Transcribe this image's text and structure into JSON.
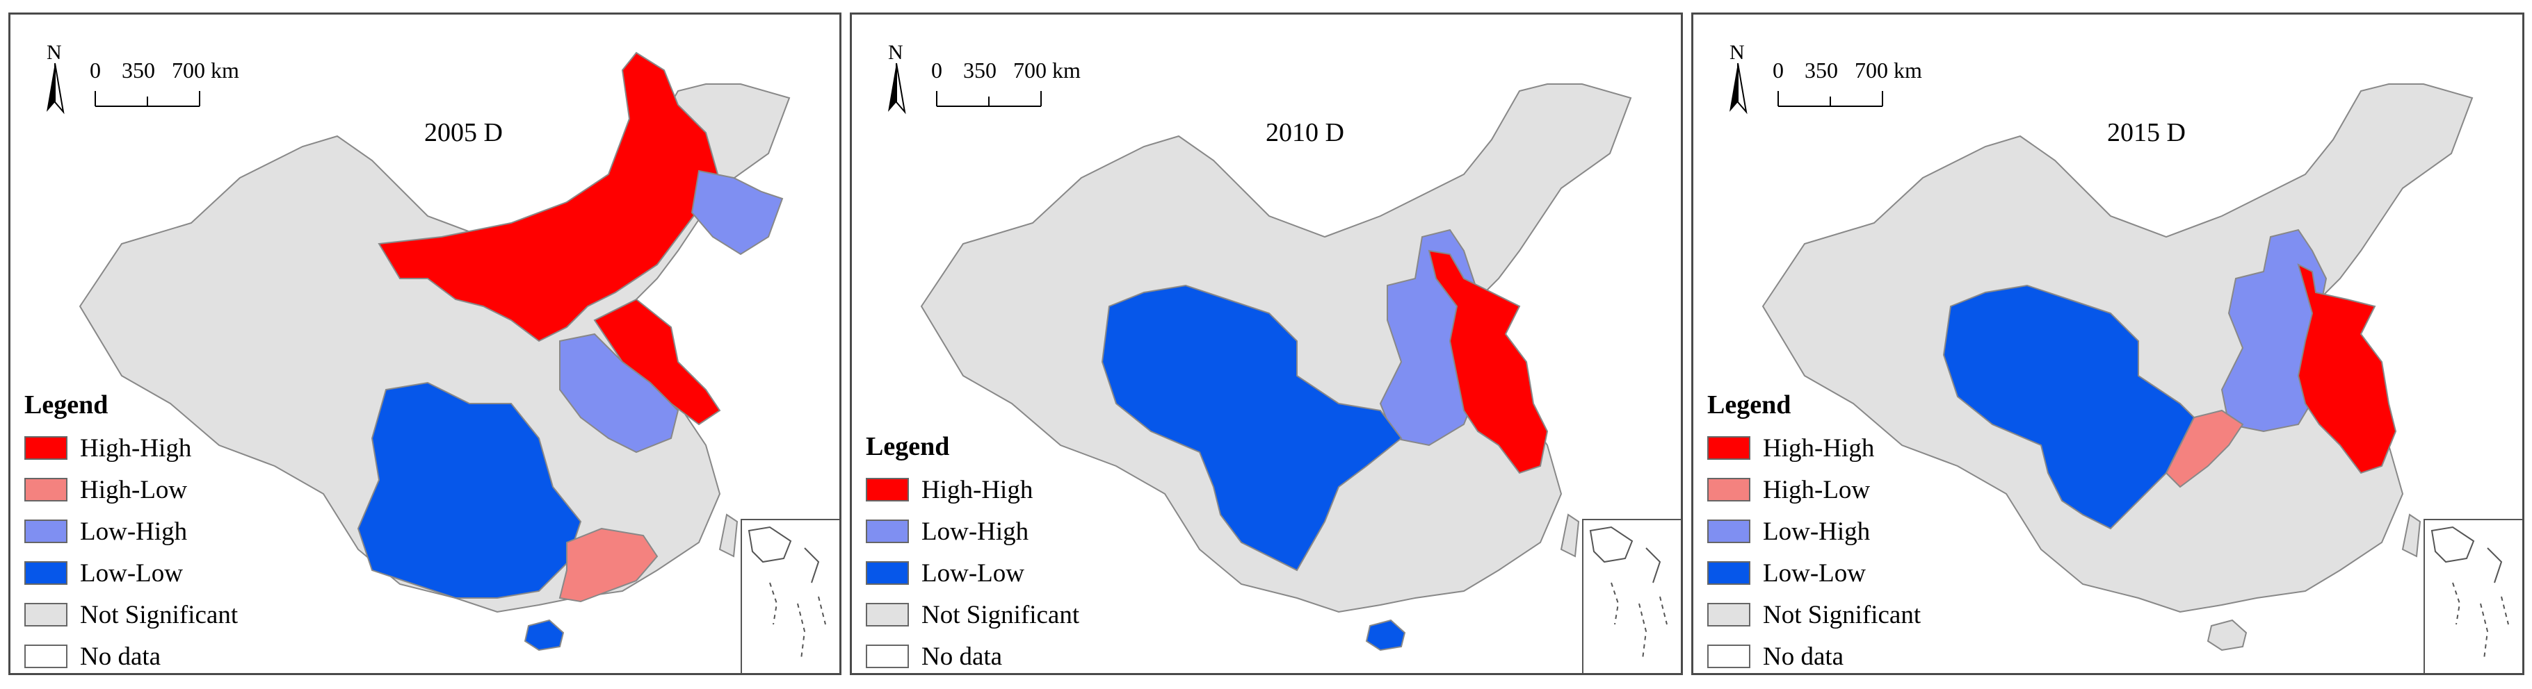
{
  "colors": {
    "high_high": "#ff0000",
    "high_low": "#f4827f",
    "low_high": "#7f8ff2",
    "low_low": "#0657ea",
    "not_significant": "#e1e1e1",
    "no_data": "#ffffff",
    "border": "#888888"
  },
  "north_label": "N",
  "scale": {
    "t0": "0",
    "t1": "350",
    "t2": "700 km"
  },
  "panels": [
    {
      "title": "2005 D",
      "legend_title": "Legend",
      "legend": [
        {
          "label": "High-High",
          "color": "#ff0000"
        },
        {
          "label": "High-Low",
          "color": "#f4827f"
        },
        {
          "label": "Low-High",
          "color": "#7f8ff2"
        },
        {
          "label": "Low-Low",
          "color": "#0657ea"
        },
        {
          "label": "Not Significant",
          "color": "#e1e1e1"
        },
        {
          "label": "No data",
          "color": "#ffffff"
        }
      ]
    },
    {
      "title": "2010 D",
      "legend_title": "Legend",
      "legend": [
        {
          "label": "High-High",
          "color": "#ff0000"
        },
        {
          "label": "Low-High",
          "color": "#7f8ff2"
        },
        {
          "label": "Low-Low",
          "color": "#0657ea"
        },
        {
          "label": "Not Significant",
          "color": "#e1e1e1"
        },
        {
          "label": "No data",
          "color": "#ffffff"
        }
      ]
    },
    {
      "title": "2015 D",
      "legend_title": "Legend",
      "legend": [
        {
          "label": "High-High",
          "color": "#ff0000"
        },
        {
          "label": "High-Low",
          "color": "#f4827f"
        },
        {
          "label": "Low-High",
          "color": "#7f8ff2"
        },
        {
          "label": "Low-Low",
          "color": "#0657ea"
        },
        {
          "label": "Not Significant",
          "color": "#e1e1e1"
        },
        {
          "label": "No data",
          "color": "#ffffff"
        }
      ]
    }
  ]
}
